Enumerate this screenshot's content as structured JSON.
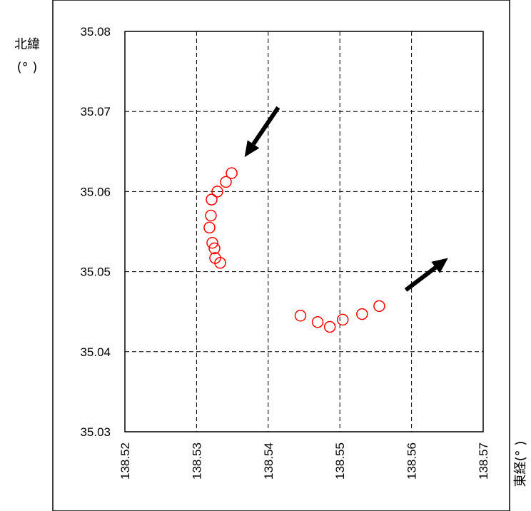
{
  "chart_data": {
    "type": "scatter",
    "ylabel_line1": "北緯",
    "ylabel_line2": "(°  )",
    "xlabel": "東経(°  )",
    "xlim": [
      138.52,
      138.57
    ],
    "ylim": [
      35.03,
      35.08
    ],
    "x_ticks": [
      "138.52",
      "138.53",
      "138.54",
      "138.55",
      "138.56",
      "138.57"
    ],
    "y_ticks": [
      "35.03",
      "35.04",
      "35.05",
      "35.06",
      "35.07",
      "35.08"
    ],
    "grid": true,
    "marker": "open-circle",
    "marker_color": "#ff0000",
    "series": [
      {
        "x": [
          138.5349,
          138.5341,
          138.5329,
          138.5321,
          138.532,
          138.5318,
          138.5322,
          138.5325,
          138.5326,
          138.5333
        ],
        "y": [
          35.0623,
          35.0612,
          35.06,
          35.059,
          35.057,
          35.0555,
          35.0536,
          35.0529,
          35.0517,
          35.0511
        ]
      },
      {
        "x": [
          138.5445,
          138.5469,
          138.5486,
          138.5504,
          138.5531,
          138.5555
        ],
        "y": [
          35.0445,
          35.0437,
          35.0431,
          35.044,
          35.0447,
          35.0457
        ]
      }
    ],
    "arrows": [
      {
        "direction": "down-left",
        "from": [
          138.5414,
          35.0705
        ],
        "to": [
          138.5367,
          35.0643
        ]
      },
      {
        "direction": "up-right",
        "from": [
          138.5592,
          35.0477
        ],
        "to": [
          138.5651,
          35.0517
        ]
      }
    ]
  }
}
